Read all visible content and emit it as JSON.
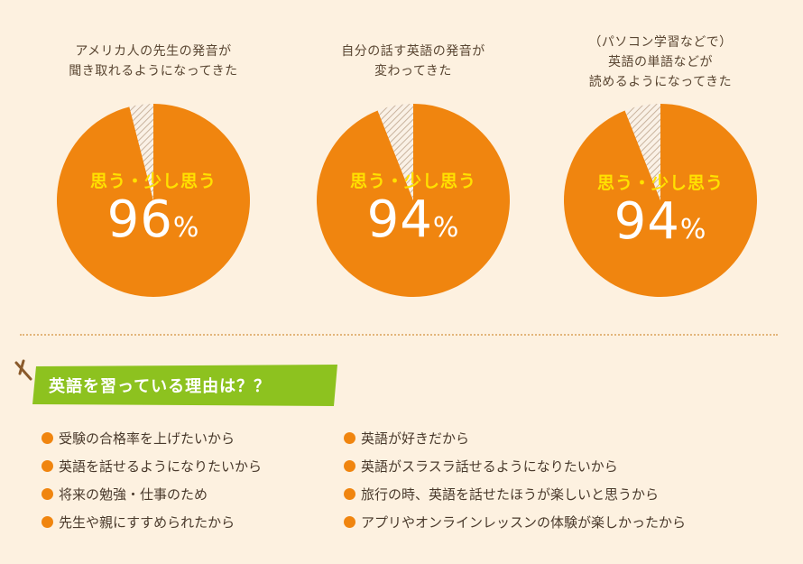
{
  "chart_data": [
    {
      "type": "pie",
      "title_lines": [
        "アメリカ人の先生の発音が",
        "聞き取れるようになってきた"
      ],
      "label": "思う・少し思う",
      "value": 96,
      "unit": "%",
      "slices": [
        {
          "label": "思う・少し思う",
          "value": 96,
          "color": "#f0850f"
        },
        {
          "label": "",
          "value": 4,
          "color": "hatch"
        }
      ]
    },
    {
      "type": "pie",
      "title_lines": [
        "自分の話す英語の発音が",
        "変わってきた"
      ],
      "label": "思う・少し思う",
      "value": 94,
      "unit": "%",
      "slices": [
        {
          "label": "思う・少し思う",
          "value": 94,
          "color": "#f0850f"
        },
        {
          "label": "",
          "value": 6,
          "color": "hatch"
        }
      ]
    },
    {
      "type": "pie",
      "title_lines": [
        "（パソコン学習などで）",
        "英語の単語などが",
        "読めるようになってきた"
      ],
      "label": "思う・少し思う",
      "value": 94,
      "unit": "%",
      "slices": [
        {
          "label": "思う・少し思う",
          "value": 94,
          "color": "#f0850f"
        },
        {
          "label": "",
          "value": 6,
          "color": "hatch"
        }
      ]
    }
  ],
  "reasons": {
    "title": "英語を習っている理由は？？",
    "left": [
      "受験の合格率を上げたいから",
      "英語を話せるようになりたいから",
      "将来の勉強・仕事のため",
      "先生や親にすすめられたから"
    ],
    "right": [
      "英語が好きだから",
      "英語がスラスラ話せるようになりたいから",
      "旅行の時、英語を話せたほうが楽しいと思うから",
      "アプリやオンラインレッスンの体験が楽しかったから"
    ]
  },
  "colors": {
    "accent": "#f0850f",
    "banner": "#8dc21f",
    "label": "#ffe100",
    "background": "#fdf1e0"
  }
}
